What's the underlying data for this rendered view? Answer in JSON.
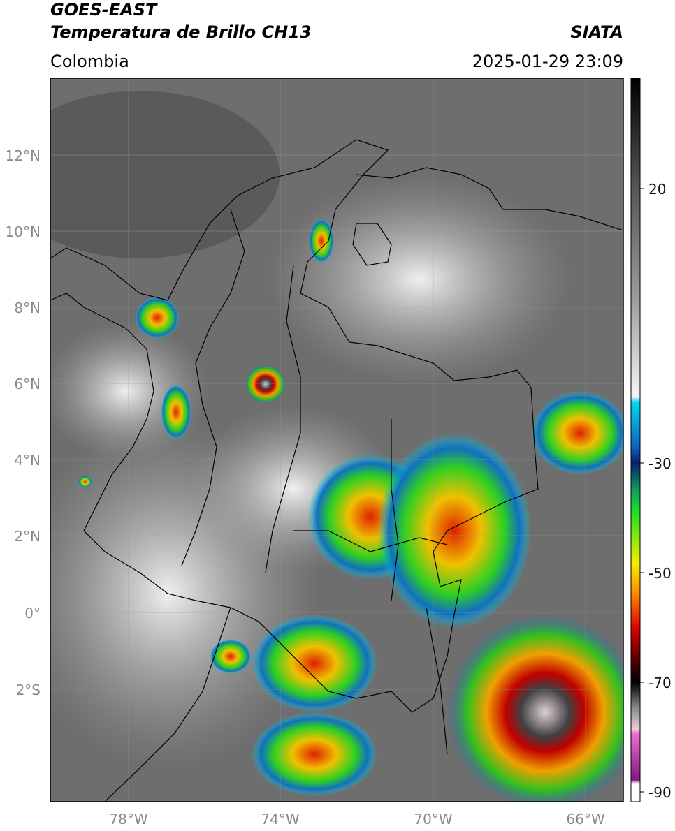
{
  "header": {
    "title": "GOES-EAST",
    "subtitle": "Temperatura de Brillo CH13",
    "source": "SIATA",
    "region": "Colombia",
    "datetime": "2025-01-29 23:09"
  },
  "map": {
    "lat_ticks": [
      "12°N",
      "10°N",
      "8°N",
      "6°N",
      "4°N",
      "2°N",
      "0°",
      "2°S"
    ],
    "lon_ticks": [
      "78°W",
      "74°W",
      "70°W",
      "66°W"
    ]
  },
  "colorbar": {
    "ticks": [
      20,
      -30,
      -50,
      -70,
      -90
    ]
  }
}
